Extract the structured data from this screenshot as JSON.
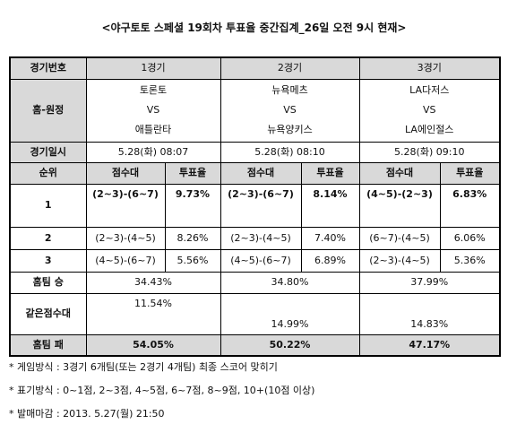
{
  "title": "<야구토토 스페셜 19회차 투표율 중간집계_26일 오전 9시 현재>",
  "table": {
    "header": {
      "label": "경기번호",
      "games": [
        "1경기",
        "2경기",
        "3경기"
      ]
    },
    "matchups": {
      "label": "홈-원정",
      "games": [
        {
          "home": "토론토",
          "vs": "VS",
          "away": "애틀란타"
        },
        {
          "home": "뉴욕메츠",
          "vs": "VS",
          "away": "뉴욕양키스"
        },
        {
          "home": "LA다저스",
          "vs": "VS",
          "away": "LA에인절스"
        }
      ]
    },
    "schedule": {
      "label": "경기일시",
      "games": [
        "5.28(화) 08:07",
        "5.28(화) 08:10",
        "5.28(화) 09:10"
      ]
    },
    "rank_header": {
      "label": "순위",
      "score": "점수대",
      "rate": "투표율"
    },
    "ranks": [
      {
        "rank": "1",
        "games": [
          {
            "score": "(2~3)-(6~7)",
            "rate": "9.73%"
          },
          {
            "score": "(2~3)-(6~7)",
            "rate": "8.14%"
          },
          {
            "score": "(4~5)-(2~3)",
            "rate": "6.83%"
          }
        ]
      },
      {
        "rank": "2",
        "games": [
          {
            "score": "(2~3)-(4~5)",
            "rate": "8.26%"
          },
          {
            "score": "(2~3)-(4~5)",
            "rate": "7.40%"
          },
          {
            "score": "(6~7)-(4~5)",
            "rate": "6.06%"
          }
        ]
      },
      {
        "rank": "3",
        "games": [
          {
            "score": "(4~5)-(6~7)",
            "rate": "5.56%"
          },
          {
            "score": "(4~5)-(6~7)",
            "rate": "6.89%"
          },
          {
            "score": "(2~3)-(4~5)",
            "rate": "5.36%"
          }
        ]
      }
    ],
    "outcomes": [
      {
        "label": "홈팀 승",
        "values": [
          "34.43%",
          "34.80%",
          "37.99%"
        ]
      },
      {
        "label": "같은점수대",
        "values": [
          "11.54%",
          "14.99%",
          "14.83%"
        ]
      },
      {
        "label": "홈팀 패",
        "values": [
          "54.05%",
          "50.22%",
          "47.17%"
        ]
      }
    ]
  },
  "notes": [
    "* 게임방식 : 3경기 6개팀(또는 2경기 4개팀) 최종 스코어 맞히기",
    "* 표기방식 : 0~1점, 2~3점, 4~5점, 6~7점, 8~9점, 10+(10점 이상)",
    "* 발매마감 : 2013. 5.27(월) 21:50"
  ]
}
